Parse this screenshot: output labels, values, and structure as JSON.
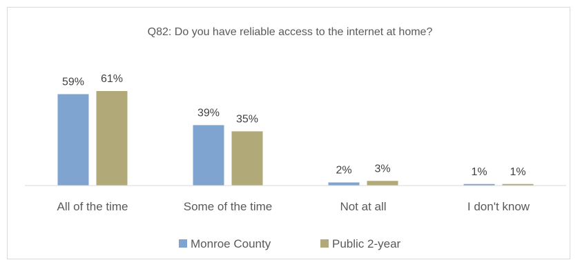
{
  "chart_data": {
    "type": "bar",
    "title": "Q82: Do you have reliable access to the internet at home?",
    "categories": [
      "All of the time",
      "Some of the time",
      "Not at all",
      "I don't know"
    ],
    "series": [
      {
        "name": "Monroe County",
        "values": [
          59,
          39,
          2,
          1
        ],
        "labels": [
          "59%",
          "39%",
          "2%",
          "1%"
        ],
        "color": "#7fa4d0"
      },
      {
        "name": "Public 2-year",
        "values": [
          61,
          35,
          3,
          1
        ],
        "labels": [
          "61%",
          "35%",
          "3%",
          "1%"
        ],
        "color": "#b2a979"
      }
    ],
    "ylim": [
      0,
      66
    ],
    "grid": false,
    "legend_position": "bottom",
    "axis_color": "#d9d9d9"
  }
}
